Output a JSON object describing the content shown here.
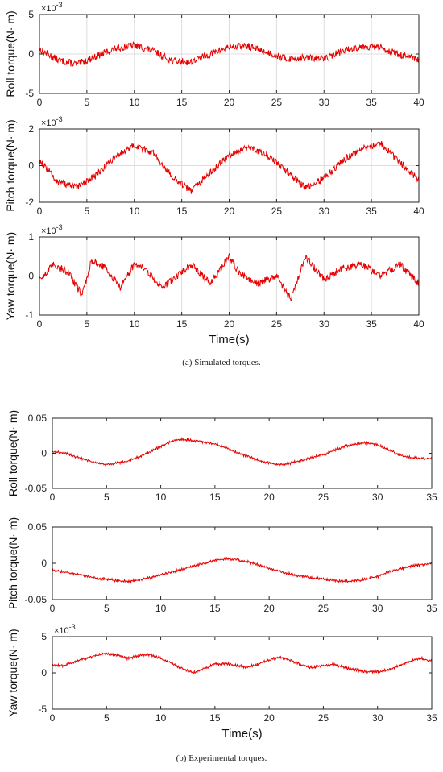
{
  "captions": {
    "a": "(a)  Simulated torques.",
    "b": "(b)  Experimental torques."
  },
  "colors": {
    "line": "#e60000",
    "grid": "#dddddd",
    "axes": "#262626"
  },
  "chart_data": [
    {
      "type": "line",
      "group": "a",
      "ylabel": "Roll torque(N· m)",
      "xlabel": "",
      "exponent": "×10",
      "exponent_power": "-3",
      "xlim": [
        0,
        40
      ],
      "ylim": [
        -5,
        5
      ],
      "xticks": [
        "0",
        "5",
        "10",
        "15",
        "20",
        "25",
        "30",
        "35",
        "40"
      ],
      "yticks": [
        "-5",
        "0",
        "5"
      ],
      "ytick_values": [
        -5,
        0,
        5
      ],
      "grid": true,
      "series": [
        {
          "x": [
            0,
            2,
            4,
            6,
            8,
            10,
            12,
            14,
            16,
            18,
            20,
            22,
            24,
            26,
            28,
            30,
            32,
            34,
            36,
            38,
            40
          ],
          "values": [
            0.6,
            -0.8,
            -1.3,
            -0.3,
            0.7,
            1.1,
            0.4,
            -0.9,
            -1.0,
            0.0,
            0.9,
            1.0,
            0.2,
            -0.6,
            -0.5,
            -0.6,
            0.4,
            1.0,
            0.8,
            -0.1,
            -0.8
          ]
        }
      ]
    },
    {
      "type": "line",
      "group": "a",
      "ylabel": "Pitch torque(N· m)",
      "xlabel": "",
      "exponent": "×10",
      "exponent_power": "-3",
      "xlim": [
        0,
        40
      ],
      "ylim": [
        -2,
        2
      ],
      "xticks": [
        "0",
        "5",
        "10",
        "15",
        "20",
        "25",
        "30",
        "35",
        "40"
      ],
      "yticks": [
        "-2",
        "0",
        "2"
      ],
      "ytick_values": [
        -2,
        0,
        2
      ],
      "grid": true,
      "series": [
        {
          "x": [
            0,
            2,
            4,
            6,
            8,
            10,
            12,
            14,
            16,
            18,
            20,
            22,
            24,
            26,
            28,
            30,
            32,
            34,
            36,
            38,
            40
          ],
          "values": [
            0.3,
            -0.9,
            -1.2,
            -0.5,
            0.5,
            1.1,
            0.7,
            -0.6,
            -1.4,
            -0.4,
            0.6,
            1.0,
            0.6,
            -0.3,
            -1.2,
            -0.7,
            0.3,
            0.9,
            1.2,
            0.2,
            -0.8
          ]
        }
      ]
    },
    {
      "type": "line",
      "group": "a",
      "ylabel": "Yaw torque(N· m)",
      "xlabel": "Time(s)",
      "exponent": "×10",
      "exponent_power": "-3",
      "xlim": [
        0,
        40
      ],
      "ylim": [
        -1,
        1
      ],
      "xticks": [
        "0",
        "5",
        "10",
        "15",
        "20",
        "25",
        "30",
        "35",
        "40"
      ],
      "yticks": [
        "-1",
        "0",
        "1"
      ],
      "ytick_values": [
        -1,
        0,
        1
      ],
      "grid": true,
      "series": [
        {
          "x": [
            0,
            1.5,
            3,
            4.5,
            5.5,
            7,
            8.5,
            10,
            11,
            13,
            15,
            16,
            18,
            20,
            21,
            23,
            25,
            26.5,
            28,
            30,
            32,
            34,
            36,
            38,
            40
          ],
          "values": [
            -0.1,
            0.3,
            0.1,
            -0.5,
            0.4,
            0.2,
            -0.3,
            0.3,
            0.2,
            -0.3,
            0.1,
            0.3,
            -0.2,
            0.5,
            0.1,
            -0.2,
            0.0,
            -0.6,
            0.5,
            -0.1,
            0.2,
            0.3,
            0.0,
            0.3,
            -0.2
          ]
        }
      ]
    },
    {
      "type": "line",
      "group": "b",
      "ylabel": "Roll torque(N· m)",
      "xlabel": "",
      "xlim": [
        0,
        35
      ],
      "ylim": [
        -0.05,
        0.05
      ],
      "xticks": [
        "0",
        "5",
        "10",
        "15",
        "20",
        "25",
        "30",
        "35"
      ],
      "yticks": [
        "-0.05",
        "0",
        "0.05"
      ],
      "ytick_values": [
        -0.05,
        0,
        0.05
      ],
      "grid": false,
      "series": [
        {
          "x": [
            0,
            1,
            2,
            3,
            4,
            5,
            6,
            7,
            8,
            9,
            10,
            11,
            12,
            13,
            14,
            15,
            16,
            17,
            18,
            19,
            20,
            21,
            22,
            23,
            24,
            25,
            26,
            27,
            28,
            29,
            30,
            31,
            32,
            33,
            34,
            35
          ],
          "values": [
            0.002,
            0.001,
            -0.004,
            -0.009,
            -0.013,
            -0.016,
            -0.014,
            -0.011,
            -0.005,
            0.002,
            0.01,
            0.017,
            0.02,
            0.018,
            0.016,
            0.013,
            0.008,
            0.001,
            -0.004,
            -0.01,
            -0.014,
            -0.016,
            -0.014,
            -0.01,
            -0.006,
            -0.002,
            0.004,
            0.01,
            0.013,
            0.015,
            0.012,
            0.005,
            -0.002,
            -0.006,
            -0.007,
            -0.008
          ]
        }
      ]
    },
    {
      "type": "line",
      "group": "b",
      "ylabel": "Pitch torque(N· m)",
      "xlabel": "",
      "xlim": [
        0,
        35
      ],
      "ylim": [
        -0.05,
        0.05
      ],
      "xticks": [
        "0",
        "5",
        "10",
        "15",
        "20",
        "25",
        "30",
        "35"
      ],
      "yticks": [
        "-0.05",
        "0",
        "0.05"
      ],
      "ytick_values": [
        -0.05,
        0,
        0.05
      ],
      "grid": false,
      "series": [
        {
          "x": [
            0,
            1,
            2,
            3,
            4,
            5,
            6,
            7,
            8,
            9,
            10,
            11,
            12,
            13,
            14,
            15,
            16,
            17,
            18,
            19,
            20,
            21,
            22,
            23,
            24,
            25,
            26,
            27,
            28,
            29,
            30,
            31,
            32,
            33,
            34,
            35
          ],
          "values": [
            -0.01,
            -0.012,
            -0.014,
            -0.017,
            -0.02,
            -0.022,
            -0.024,
            -0.025,
            -0.023,
            -0.02,
            -0.016,
            -0.012,
            -0.008,
            -0.004,
            0.0,
            0.004,
            0.006,
            0.005,
            0.002,
            -0.002,
            -0.007,
            -0.011,
            -0.015,
            -0.018,
            -0.02,
            -0.022,
            -0.024,
            -0.025,
            -0.024,
            -0.022,
            -0.018,
            -0.012,
            -0.008,
            -0.004,
            -0.002,
            0.0
          ]
        }
      ]
    },
    {
      "type": "line",
      "group": "b",
      "ylabel": "Yaw torque(N· m)",
      "xlabel": "Time(s)",
      "exponent": "×10",
      "exponent_power": "-3",
      "xlim": [
        0,
        35
      ],
      "ylim": [
        -5,
        5
      ],
      "xticks": [
        "0",
        "5",
        "10",
        "15",
        "20",
        "25",
        "30",
        "35"
      ],
      "yticks": [
        "-5",
        "0",
        "5"
      ],
      "ytick_values": [
        -5,
        0,
        5
      ],
      "grid": false,
      "series": [
        {
          "x": [
            0,
            1,
            2,
            3,
            4,
            5,
            6,
            7,
            8,
            9,
            10,
            11,
            12,
            13,
            14,
            15,
            16,
            17,
            18,
            19,
            20,
            21,
            22,
            23,
            24,
            25,
            26,
            27,
            28,
            29,
            30,
            31,
            32,
            33,
            34,
            35
          ],
          "values": [
            1.0,
            1.0,
            1.5,
            2.0,
            2.4,
            2.7,
            2.4,
            2.0,
            2.4,
            2.5,
            2.0,
            1.3,
            0.6,
            0.0,
            0.6,
            1.2,
            1.3,
            1.0,
            0.8,
            1.2,
            1.8,
            2.2,
            1.7,
            1.1,
            0.7,
            1.0,
            1.2,
            0.7,
            0.4,
            0.1,
            0.2,
            0.4,
            1.0,
            1.6,
            2.0,
            1.6
          ]
        }
      ]
    }
  ]
}
